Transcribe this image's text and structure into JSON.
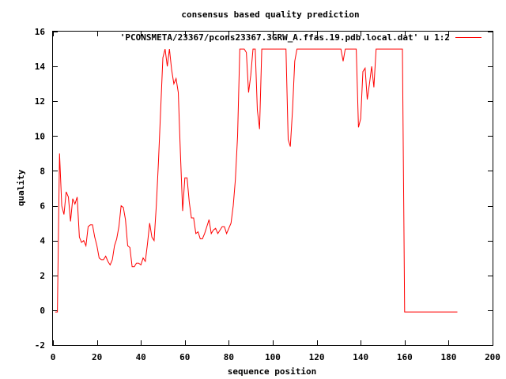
{
  "chart_data": {
    "type": "line",
    "title": "consensus based quality prediction",
    "xlabel": "sequence position",
    "ylabel": "quality",
    "xlim": [
      0,
      200
    ],
    "ylim": [
      -2,
      16
    ],
    "xticks": [
      0,
      20,
      40,
      60,
      80,
      100,
      120,
      140,
      160,
      180,
      200
    ],
    "yticks": [
      -2,
      0,
      2,
      4,
      6,
      8,
      10,
      12,
      14,
      16
    ],
    "grid": false,
    "legend": "top-right",
    "series": [
      {
        "name": "'PCONSMETA/23367/pcons23367.3GRW_A.ffas.19.pdb.local.dat' u 1:2",
        "color": "#ff0000",
        "x": [
          1,
          2,
          3,
          4,
          5,
          6,
          7,
          8,
          9,
          10,
          11,
          12,
          13,
          14,
          15,
          16,
          17,
          18,
          19,
          20,
          21,
          22,
          23,
          24,
          25,
          26,
          27,
          28,
          29,
          30,
          31,
          32,
          33,
          34,
          35,
          36,
          37,
          38,
          39,
          40,
          41,
          42,
          43,
          44,
          45,
          46,
          47,
          48,
          49,
          50,
          51,
          52,
          53,
          54,
          55,
          56,
          57,
          58,
          59,
          60,
          61,
          62,
          63,
          64,
          65,
          66,
          67,
          68,
          69,
          70,
          71,
          72,
          73,
          74,
          75,
          76,
          77,
          78,
          79,
          80,
          81,
          82,
          83,
          84,
          85,
          86,
          87,
          88,
          89,
          90,
          91,
          92,
          93,
          94,
          95,
          96,
          97,
          98,
          99,
          100,
          101,
          102,
          103,
          104,
          105,
          106,
          107,
          108,
          109,
          110,
          111,
          112,
          113,
          114,
          115,
          116,
          117,
          118,
          119,
          120,
          121,
          122,
          123,
          124,
          125,
          126,
          127,
          128,
          129,
          130,
          131,
          132,
          133,
          134,
          135,
          136,
          137,
          138,
          139,
          140,
          141,
          142,
          143,
          144,
          145,
          146,
          147,
          148,
          149,
          150,
          151,
          152,
          153,
          154,
          155,
          156,
          157,
          158,
          159,
          160,
          161,
          162,
          165,
          170,
          175,
          180,
          184
        ],
        "values": [
          -0.1,
          -0.1,
          9.0,
          6.0,
          5.5,
          6.8,
          6.5,
          5.1,
          6.4,
          6.1,
          6.5,
          4.2,
          3.9,
          4.0,
          3.7,
          4.8,
          4.9,
          4.9,
          4.2,
          3.7,
          3.0,
          2.9,
          2.9,
          3.1,
          2.8,
          2.6,
          2.9,
          3.7,
          4.1,
          4.8,
          6.0,
          5.9,
          5.2,
          3.7,
          3.6,
          2.5,
          2.5,
          2.7,
          2.7,
          2.6,
          3.0,
          2.8,
          3.8,
          5.0,
          4.2,
          4.0,
          6.0,
          8.5,
          11.5,
          14.5,
          15.0,
          14.0,
          15.0,
          13.8,
          13.0,
          13.3,
          12.5,
          9.0,
          5.7,
          7.6,
          7.6,
          6.2,
          5.3,
          5.3,
          4.4,
          4.5,
          4.1,
          4.1,
          4.4,
          4.8,
          5.2,
          4.4,
          4.6,
          4.7,
          4.4,
          4.6,
          4.8,
          4.8,
          4.4,
          4.7,
          5.0,
          6.0,
          7.5,
          10.0,
          15.0,
          15.0,
          15.0,
          14.8,
          12.5,
          13.5,
          15.0,
          15.0,
          11.5,
          10.4,
          15.0,
          15.0,
          15.0,
          15.0,
          15.0,
          15.0,
          15.0,
          15.0,
          15.0,
          15.0,
          15.0,
          15.0,
          9.8,
          9.4,
          11.5,
          14.3,
          15.0,
          15.0,
          15.0,
          15.0,
          15.0,
          15.0,
          15.0,
          15.0,
          15.0,
          15.0,
          15.0,
          15.0,
          15.0,
          15.0,
          15.0,
          15.0,
          15.0,
          15.0,
          15.0,
          15.0,
          15.0,
          14.3,
          15.0,
          15.0,
          15.0,
          15.0,
          15.0,
          15.0,
          10.5,
          11.0,
          13.7,
          13.9,
          12.1,
          13.0,
          14.0,
          12.8,
          15.0,
          15.0,
          15.0,
          15.0,
          15.0,
          15.0,
          15.0,
          15.0,
          15.0,
          15.0,
          15.0,
          15.0,
          15.0,
          -0.1,
          -0.1,
          -0.1,
          -0.1,
          -0.1,
          -0.1,
          -0.1,
          -0.1
        ]
      }
    ]
  }
}
